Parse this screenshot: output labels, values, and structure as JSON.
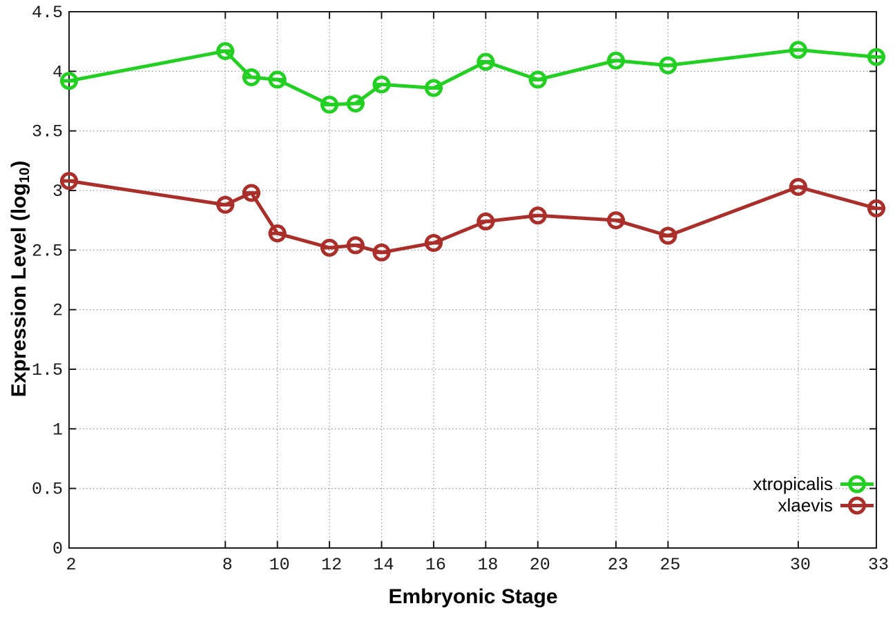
{
  "chart_data": {
    "type": "line",
    "title": "",
    "xlabel": "Embryonic Stage",
    "ylabel": {
      "main": "Expression Level (log",
      "sub": "10",
      "close": ")"
    },
    "x_range": [
      2,
      33
    ],
    "y_range": [
      0,
      4.5
    ],
    "x_ticks": [
      2,
      8,
      10,
      12,
      14,
      16,
      18,
      20,
      23,
      25,
      30,
      33
    ],
    "x_tick_labels": [
      "2",
      "8",
      "10",
      "12",
      "14",
      "16",
      "18",
      "20",
      "23",
      "25",
      "30",
      "33"
    ],
    "y_ticks": [
      0,
      0.5,
      1,
      1.5,
      2,
      2.5,
      3,
      3.5,
      4,
      4.5
    ],
    "y_tick_labels": [
      "0",
      "0.5",
      "1",
      "1.5",
      "2",
      "2.5",
      "3",
      "3.5",
      "4",
      "4.5"
    ],
    "grid": true,
    "legend_position": "inside-bottom-right",
    "x": [
      2,
      8,
      9,
      10,
      12,
      13,
      14,
      16,
      18,
      20,
      23,
      25,
      30,
      33
    ],
    "series": [
      {
        "name": "xtropicalis",
        "color": "#22cf22",
        "values": [
          3.92,
          4.17,
          3.95,
          3.93,
          3.72,
          3.73,
          3.89,
          3.86,
          4.08,
          3.93,
          4.09,
          4.05,
          4.18,
          4.12
        ]
      },
      {
        "name": "xlaevis",
        "color": "#aa2f2b",
        "values": [
          3.08,
          2.88,
          2.98,
          2.64,
          2.52,
          2.54,
          2.48,
          2.56,
          2.74,
          2.79,
          2.75,
          2.62,
          3.03,
          2.85
        ]
      }
    ],
    "style": {
      "border_color": "#1a1a1a",
      "grid_color": "#9a9a9a",
      "tick_label_color": "#1a1a1a",
      "background": "#ffffff"
    }
  }
}
